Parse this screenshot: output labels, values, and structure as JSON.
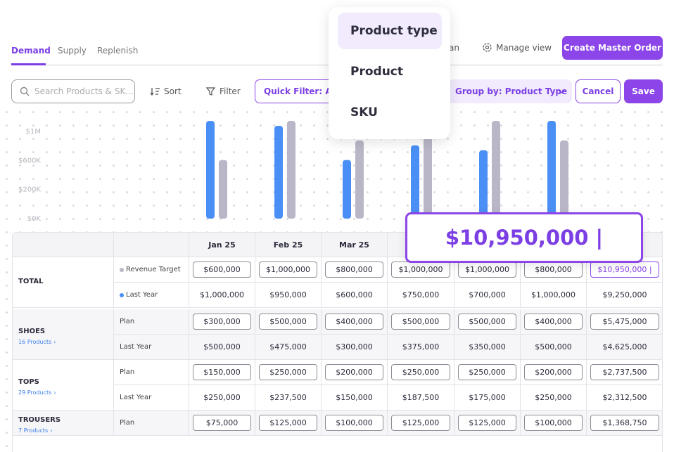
{
  "tabs": [
    "Demand",
    "Supply",
    "Replenish"
  ],
  "header_partial": "an",
  "manage_view": "Manage view",
  "create_button": "Create Master Order",
  "search_placeholder": "Search Products & SK...",
  "sort": "Sort",
  "filter": "Filter",
  "quick_filter": "Quick Filter: All",
  "group_by": "Group by: Product Type",
  "cancel": "Cancel",
  "save": "Save",
  "dropdown": [
    "Product type",
    "Product",
    "SKU"
  ],
  "chart_data": {
    "type": "bar",
    "y_axis_labels": [
      "$1M",
      "$600K",
      "$200K",
      "$0K"
    ],
    "ylim": [
      0,
      1000000
    ],
    "series": [
      {
        "color": "#4a8ff5",
        "values": [
          1000000,
          950000,
          600000,
          750000,
          700000,
          1000000
        ]
      },
      {
        "color": "#b9b7c7",
        "values": [
          600000,
          1000000,
          800000,
          1000000,
          1000000,
          800000
        ]
      }
    ]
  },
  "table": {
    "columns": [
      "Jan 25",
      "Feb 25",
      "Mar 25"
    ],
    "groups": [
      {
        "name": "TOTAL",
        "rows": [
          {
            "label": "Revenue Target",
            "cells": [
              "$600,000",
              "$1,000,000",
              "$800,000",
              "$1,000,000",
              "$1,000,000",
              "$800,000",
              "$10,950,000 |"
            ]
          },
          {
            "label": "Last Year",
            "cells": [
              "$1,000,000",
              "$950,000",
              "$600,000",
              "$750,000",
              "$700,000",
              "$1,000,000",
              "$9,250,000"
            ]
          }
        ]
      },
      {
        "name": "SHOES",
        "count": "16 Products",
        "rows": [
          {
            "label": "Plan",
            "cells": [
              "$300,000",
              "$500,000",
              "$400,000",
              "$500,000",
              "$500,000",
              "$400,000",
              "$5,475,000"
            ]
          },
          {
            "label": "Last Year",
            "cells": [
              "$500,000",
              "$475,000",
              "$300,000",
              "$375,000",
              "$350,000",
              "$500,000",
              "$4,625,000"
            ]
          }
        ]
      },
      {
        "name": "TOPS",
        "count": "29 Products",
        "rows": [
          {
            "label": "Plan",
            "cells": [
              "$150,000",
              "$250,000",
              "$200,000",
              "$250,000",
              "$250,000",
              "$200,000",
              "$2,737,500"
            ]
          },
          {
            "label": "Last Year",
            "cells": [
              "$250,000",
              "$237,500",
              "$150,000",
              "$187,500",
              "$175,000",
              "$250,000",
              "$2,312,500"
            ]
          }
        ]
      },
      {
        "name": "TROUSERS",
        "count": "7 Products",
        "rows": [
          {
            "label": "Plan",
            "cells": [
              "$75,000",
              "$125,000",
              "$100,000",
              "$125,000",
              "$125,000",
              "$100,000",
              "$1,368,750"
            ]
          }
        ]
      }
    ]
  },
  "focused_value": "$10,950,000 |"
}
